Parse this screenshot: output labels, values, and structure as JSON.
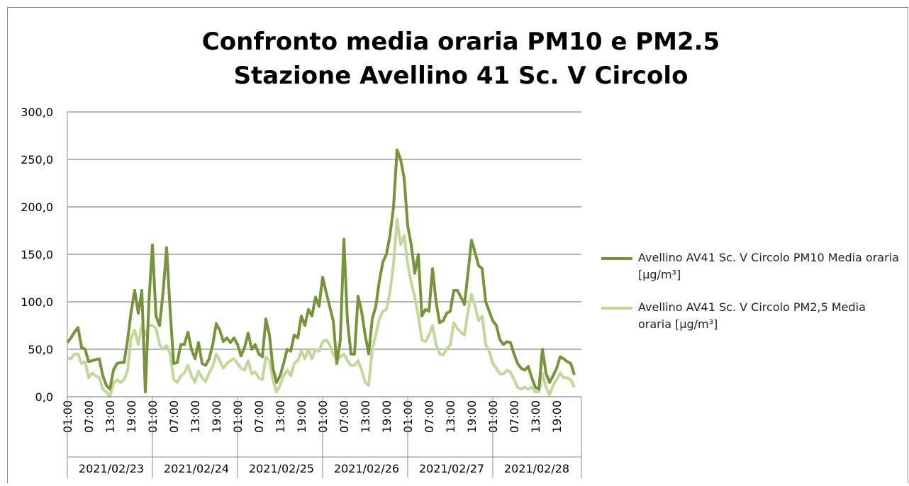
{
  "chart_data": {
    "type": "line",
    "title": "Confronto media oraria PM10 e PM2.5",
    "subtitle": "Stazione Avellino 41 Sc. V Circolo",
    "categories": [
      "01:00",
      null,
      null,
      null,
      null,
      null,
      "07:00",
      null,
      null,
      null,
      null,
      null,
      "13:00",
      null,
      null,
      null,
      null,
      null,
      "19:00",
      null,
      null,
      null,
      null,
      null,
      "01:00",
      null,
      null,
      null,
      null,
      null,
      "07:00",
      null,
      null,
      null,
      null,
      null,
      "13:00",
      null,
      null,
      null,
      null,
      null,
      "19:00",
      null,
      null,
      null,
      null,
      null,
      "01:00",
      null,
      null,
      null,
      null,
      null,
      "07:00",
      null,
      null,
      null,
      null,
      null,
      "13:00",
      null,
      null,
      null,
      null,
      null,
      "19:00",
      null,
      null,
      null,
      null,
      null,
      "01:00",
      null,
      null,
      null,
      null,
      null,
      "07:00",
      null,
      null,
      null,
      null,
      null,
      "13:00",
      null,
      null,
      null,
      null,
      null,
      "19:00",
      null,
      null,
      null,
      null,
      null,
      "01:00",
      null,
      null,
      null,
      null,
      null,
      "07:00",
      null,
      null,
      null,
      null,
      null,
      "13:00",
      null,
      null,
      null,
      null,
      null,
      "19:00",
      null,
      null,
      null,
      null,
      null,
      "01:00",
      null,
      null,
      null,
      null,
      null,
      "07:00",
      null,
      null,
      null,
      null,
      null,
      "13:00",
      null,
      null,
      null,
      null,
      null,
      "19:00",
      null,
      null,
      null,
      null,
      null
    ],
    "category_groups": [
      "2021/02/23",
      "2021/02/24",
      "2021/02/25",
      "2021/02/26",
      "2021/02/27",
      "2021/02/28"
    ],
    "series": [
      {
        "name": "Avellino AV41 Sc. V Circolo  PM10 Media oraria [µg/m³]",
        "color": "#77933c",
        "values": [
          57,
          62,
          68,
          73,
          52,
          50,
          37,
          38,
          39,
          40,
          22,
          12,
          8,
          28,
          35,
          36,
          36,
          60,
          90,
          112,
          88,
          112,
          5,
          100,
          160,
          85,
          75,
          110,
          157,
          90,
          35,
          36,
          55,
          55,
          68,
          50,
          40,
          57,
          35,
          33,
          40,
          55,
          77,
          70,
          58,
          62,
          57,
          62,
          55,
          43,
          52,
          67,
          50,
          55,
          45,
          42,
          82,
          65,
          30,
          15,
          22,
          35,
          50,
          48,
          65,
          62,
          85,
          75,
          92,
          85,
          105,
          95,
          126,
          110,
          95,
          80,
          35,
          60,
          166,
          80,
          45,
          45,
          106,
          90,
          65,
          45,
          82,
          95,
          122,
          142,
          150,
          170,
          200,
          260,
          250,
          230,
          180,
          160,
          130,
          150,
          85,
          92,
          90,
          135,
          100,
          78,
          80,
          88,
          90,
          112,
          112,
          105,
          97,
          130,
          165,
          152,
          138,
          135,
          100,
          90,
          80,
          75,
          60,
          55,
          58,
          57,
          45,
          35,
          30,
          28,
          32,
          20,
          10,
          8,
          50,
          25,
          15,
          22,
          30,
          42,
          40,
          37,
          35,
          23
        ]
      },
      {
        "name": "Avellino AV41 Sc. V Circolo  PM2,5 Media oraria [µg/m³]",
        "color": "#c3d69b",
        "values": [
          41,
          40,
          45,
          45,
          35,
          37,
          20,
          25,
          22,
          20,
          8,
          5,
          0,
          14,
          18,
          15,
          18,
          28,
          62,
          70,
          55,
          75,
          65,
          75,
          75,
          72,
          55,
          50,
          54,
          45,
          18,
          15,
          22,
          25,
          33,
          22,
          15,
          27,
          20,
          16,
          25,
          32,
          45,
          38,
          30,
          35,
          38,
          40,
          35,
          30,
          28,
          38,
          24,
          26,
          20,
          18,
          42,
          38,
          18,
          5,
          12,
          22,
          28,
          22,
          35,
          38,
          48,
          40,
          50,
          40,
          50,
          48,
          58,
          60,
          55,
          45,
          38,
          42,
          45,
          38,
          33,
          33,
          38,
          28,
          15,
          12,
          50,
          65,
          82,
          90,
          92,
          110,
          140,
          187,
          160,
          170,
          140,
          120,
          105,
          85,
          60,
          58,
          65,
          75,
          55,
          45,
          44,
          50,
          55,
          78,
          72,
          68,
          65,
          90,
          108,
          95,
          80,
          85,
          55,
          48,
          35,
          30,
          24,
          24,
          28,
          26,
          18,
          10,
          8,
          10,
          8,
          10,
          5,
          5,
          25,
          10,
          2,
          12,
          18,
          25,
          20,
          20,
          18,
          10
        ]
      }
    ],
    "ylim": [
      0,
      300
    ],
    "yticks": [
      {
        "value": 0,
        "label": "0,0"
      },
      {
        "value": 50,
        "label": "50,0"
      },
      {
        "value": 100,
        "label": "100,0"
      },
      {
        "value": 150,
        "label": "150,0"
      },
      {
        "value": 200,
        "label": "200,0"
      },
      {
        "value": 250,
        "label": "250,0"
      },
      {
        "value": 300,
        "label": "300,0"
      }
    ],
    "grid": true,
    "legend": "right"
  }
}
